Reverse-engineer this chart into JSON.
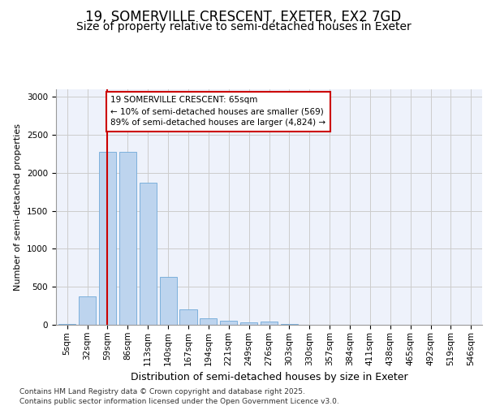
{
  "title_line1": "19, SOMERVILLE CRESCENT, EXETER, EX2 7GD",
  "title_line2": "Size of property relative to semi-detached houses in Exeter",
  "xlabel": "Distribution of semi-detached houses by size in Exeter",
  "ylabel": "Number of semi-detached properties",
  "categories": [
    "5sqm",
    "32sqm",
    "59sqm",
    "86sqm",
    "113sqm",
    "140sqm",
    "167sqm",
    "194sqm",
    "221sqm",
    "249sqm",
    "276sqm",
    "303sqm",
    "330sqm",
    "357sqm",
    "384sqm",
    "411sqm",
    "438sqm",
    "465sqm",
    "492sqm",
    "519sqm",
    "546sqm"
  ],
  "values": [
    10,
    375,
    2280,
    2280,
    1870,
    635,
    200,
    90,
    55,
    35,
    40,
    10,
    0,
    0,
    0,
    0,
    0,
    0,
    0,
    0,
    0
  ],
  "bar_color": "#bdd4ee",
  "bar_edge_color": "#6fa8d8",
  "red_line_index": 2,
  "annotation_text": "19 SOMERVILLE CRESCENT: 65sqm\n← 10% of semi-detached houses are smaller (569)\n89% of semi-detached houses are larger (4,824) →",
  "annotation_box_facecolor": "#ffffff",
  "annotation_box_edgecolor": "#cc0000",
  "red_line_color": "#cc0000",
  "ylim": [
    0,
    3100
  ],
  "yticks": [
    0,
    500,
    1000,
    1500,
    2000,
    2500,
    3000
  ],
  "grid_color": "#cccccc",
  "plot_bg_color": "#eef2fb",
  "footer_text": "Contains HM Land Registry data © Crown copyright and database right 2025.\nContains public sector information licensed under the Open Government Licence v3.0.",
  "title_fontsize": 12,
  "subtitle_fontsize": 10,
  "ylabel_fontsize": 8,
  "xlabel_fontsize": 9,
  "tick_fontsize": 7.5,
  "annotation_fontsize": 7.5,
  "footer_fontsize": 6.5
}
